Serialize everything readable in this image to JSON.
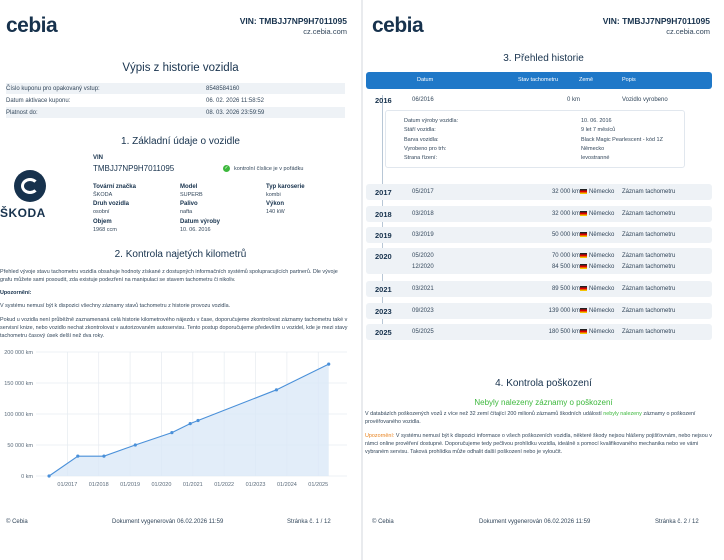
{
  "header": {
    "logo": "cebia",
    "vin": "VIN: TMBJJ7NP9H7011095",
    "url": "cz.cebia.com"
  },
  "page1": {
    "title": "Výpis z historie vozidla",
    "coupon_rows": [
      {
        "label": "Číslo kuponu pro opakovaný vstup:",
        "value": "8548584160"
      },
      {
        "label": "Datum aktivace kuponu:",
        "value": "06. 02. 2026 11:58:52"
      },
      {
        "label": "Platnost do:",
        "value": "08. 03. 2026 23:59:59"
      }
    ],
    "section1_title": "1. Základní údaje o vozidle",
    "brand_logo_text": "ŠKODA",
    "vin_label": "VIN",
    "vin_value": "TMBJJ7NP9H7011095",
    "checksum_label": "kontrolní číslice je v pořádku",
    "fields": [
      {
        "label": "Tovární značka",
        "value": "ŠKODA"
      },
      {
        "label": "Model",
        "value": "SUPERB"
      },
      {
        "label": "Typ karoserie",
        "value": "kombi"
      },
      {
        "label": "Druh vozidla",
        "value": "osobní"
      },
      {
        "label": "Palivo",
        "value": "nafta"
      },
      {
        "label": "Výkon",
        "value": "140 kW"
      },
      {
        "label": "Objem",
        "value": "1968 ccm"
      },
      {
        "label": "Datum výroby",
        "value": "10. 06. 2016"
      }
    ],
    "section2_title": "2. Kontrola najetých kilometrů",
    "paragraph1": "Přehled vývoje stavu tachometru vozidla obsahuje hodnoty získané z dostupných informačních systémů spolupracujících partnerů. Dle vývoje grafu můžete sami posoudit, zda existuje podezření na manipulaci se stavem tachometru či nikoliv.",
    "warning_label": "Upozornění:",
    "paragraph2": "V systému nemusí být k dispozici všechny záznamy stavů tachometru z historie provozu vozidla.",
    "paragraph3": "Pokud u vozidla není průběžně zaznamenaná celá historie kilometrového nájezdu v čase, doporučujeme zkontrolovat záznamy tachometru také v servisní knize, nebo vozidlo nechat zkontrolovat v autorizovaném autoservisu. Tento postup doporučujeme především u vozidel, kde je mezi stavy tachometru časový úsek delší než dva roky.",
    "footer_left": "© Cebia",
    "footer_center": "Dokument vygenerován 06.02.2026 11:59",
    "footer_right": "Stránka č. 1 / 12"
  },
  "chart_data": {
    "type": "line",
    "title": "",
    "xlabel": "",
    "ylabel": "",
    "y_ticks": [
      "0 km",
      "50 000 km",
      "100 000 km",
      "150 000 km",
      "200 000 km"
    ],
    "x_ticks": [
      "01/2017",
      "01/2018",
      "01/2019",
      "01/2020",
      "01/2021",
      "01/2022",
      "01/2023",
      "01/2024",
      "01/2025"
    ],
    "ylim": [
      0,
      200000
    ],
    "xlim": [
      "2016-01",
      "2025-12"
    ],
    "grid": true,
    "color": "#4a90d9",
    "points": [
      {
        "x": "2016-06",
        "y": 0
      },
      {
        "x": "2017-05",
        "y": 32000
      },
      {
        "x": "2018-03",
        "y": 32000
      },
      {
        "x": "2019-03",
        "y": 50000
      },
      {
        "x": "2020-05",
        "y": 70000
      },
      {
        "x": "2020-12",
        "y": 84500
      },
      {
        "x": "2021-03",
        "y": 89500
      },
      {
        "x": "2023-09",
        "y": 139000
      },
      {
        "x": "2025-05",
        "y": 180500
      }
    ]
  },
  "page2": {
    "section3_title": "3. Přehled historie",
    "table_headers": [
      "Datum",
      "Stav tachometru",
      "Země",
      "Popis"
    ],
    "first_row": {
      "year": "2016",
      "date": "06/2016",
      "km": "0 km",
      "country": "",
      "note": "Vozidlo vyrobeno"
    },
    "details": [
      {
        "label": "Datum výroby vozidla:",
        "value": "10. 06. 2016"
      },
      {
        "label": "Stáří vozidla:",
        "value": "9 let 7 měsíců"
      },
      {
        "label": "Barva vozidla:",
        "value": "Black Magic Pearlescent - kód 1Z"
      },
      {
        "label": "Vyrobeno pro trh:",
        "value": "Německo"
      },
      {
        "label": "Strana řízení:",
        "value": "levostranné"
      }
    ],
    "rows": [
      {
        "year": "2017",
        "date": "05/2017",
        "km": "32 000 km",
        "country": "Německo",
        "note": "Záznam tachometru"
      },
      {
        "year": "2018",
        "date": "03/2018",
        "km": "32 000 km",
        "country": "Německo",
        "note": "Záznam tachometru"
      },
      {
        "year": "2019",
        "date": "03/2019",
        "km": "50 000 km",
        "country": "Německo",
        "note": "Záznam tachometru"
      },
      {
        "year": "2020",
        "date": "05/2020",
        "km": "70 000 km",
        "country": "Německo",
        "note": "Záznam tachometru"
      },
      {
        "year": "",
        "date": "12/2020",
        "km": "84 500 km",
        "country": "Německo",
        "note": "Záznam tachometru"
      },
      {
        "year": "2021",
        "date": "03/2021",
        "km": "89 500 km",
        "country": "Německo",
        "note": "Záznam tachometru"
      },
      {
        "year": "2023",
        "date": "09/2023",
        "km": "139 000 km",
        "country": "Německo",
        "note": "Záznam tachometru"
      },
      {
        "year": "2025",
        "date": "05/2025",
        "km": "180 500 km",
        "country": "Německo",
        "note": "Záznam tachometru"
      }
    ],
    "section4_title": "4. Kontrola poškození",
    "green_title": "Nebyly nalezeny záznamy o poškození",
    "damage_text_before": "V databázích poškozených vozů z více než 32 zemí čítající 200 milionů záznamů škodních událostí",
    "damage_highlight": "nebyly nalezeny",
    "damage_text_after": "záznamy o poškození prověřovaného vozidla.",
    "warning2_label": "Upozornění:",
    "warning2_text": "V systému nemusí být k dispozici informace o všech poškozeních vozidla, některé škody nejsou hlášeny pojišťovnám, nebo nejsou v rámci online prověření dostupné. Doporučujeme tedy pečlivou prohlídku vozidla, ideálně s pomocí kvalifikovaného mechanika nebo ve vámi vybraném servisu. Taková prohlídka může odhalit další poškození nebo je vyloučit.",
    "footer_left": "© Cebia",
    "footer_center": "Dokument vygenerován 06.02.2026 11:59",
    "footer_right": "Stránka č. 2 / 12"
  },
  "colors": {
    "brand": "#17324d",
    "accent": "#1f78c8",
    "green": "#3db83d",
    "orange": "#e8821e"
  }
}
